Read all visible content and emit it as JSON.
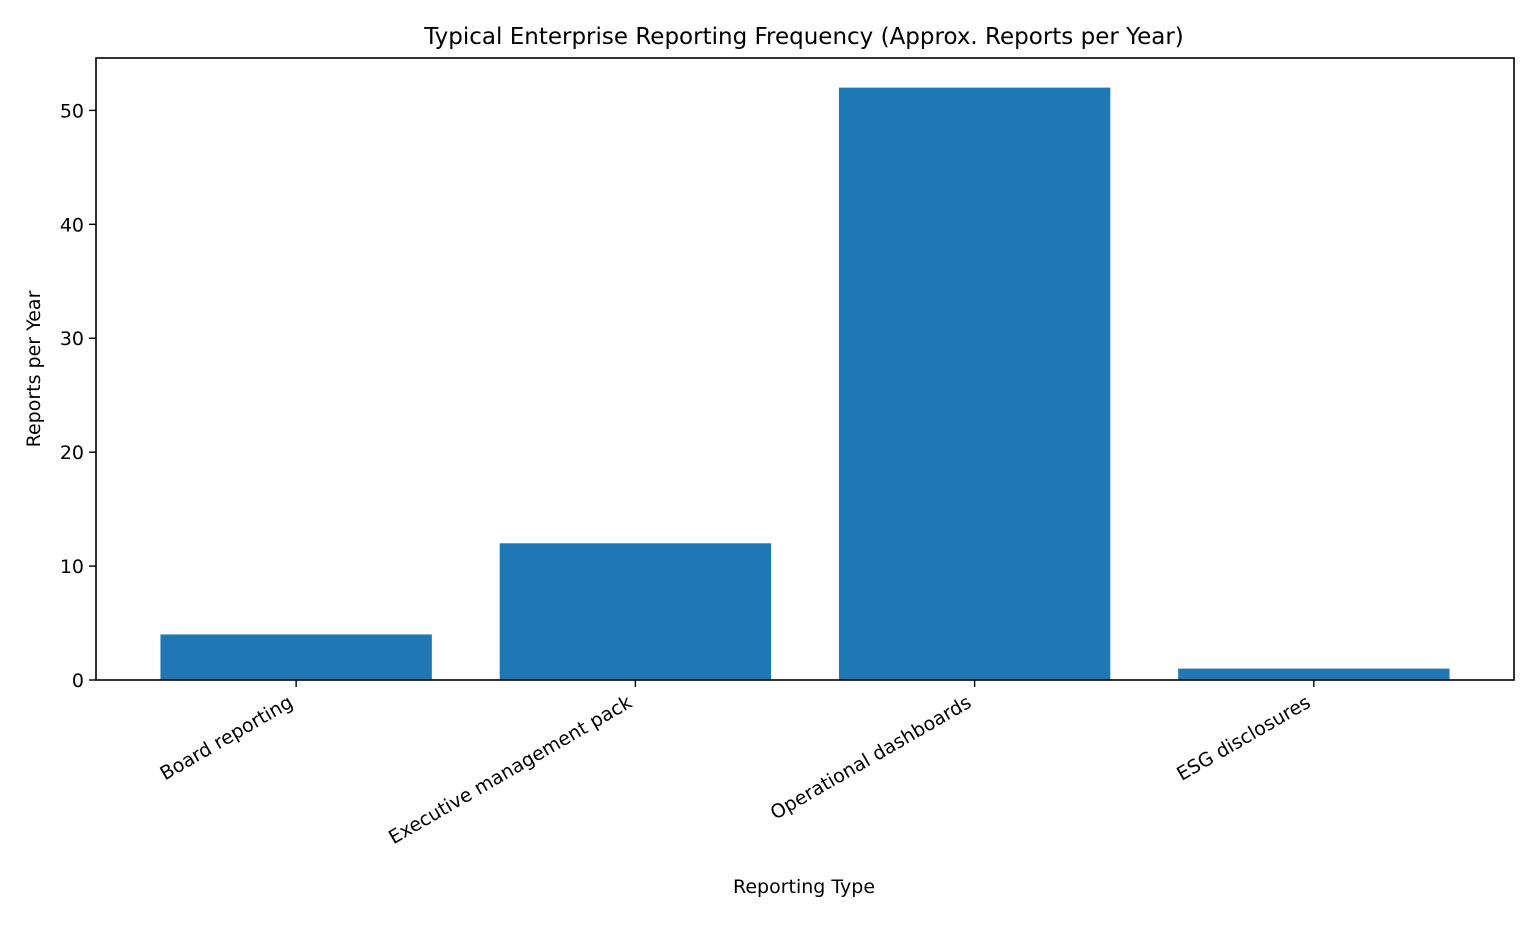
{
  "chart_data": {
    "type": "bar",
    "title": "Typical Enterprise Reporting Frequency (Approx. Reports per Year)",
    "xlabel": "Reporting Type",
    "ylabel": "Reports per Year",
    "categories": [
      "Board reporting",
      "Executive management pack",
      "Operational dashboards",
      "ESG disclosures"
    ],
    "values": [
      4,
      12,
      52,
      1
    ],
    "ylim": [
      0,
      54.6
    ],
    "yticks": [
      0,
      10,
      20,
      30,
      40,
      50
    ],
    "grid": false,
    "legend": "none",
    "bar_color": "#1f77b4"
  }
}
